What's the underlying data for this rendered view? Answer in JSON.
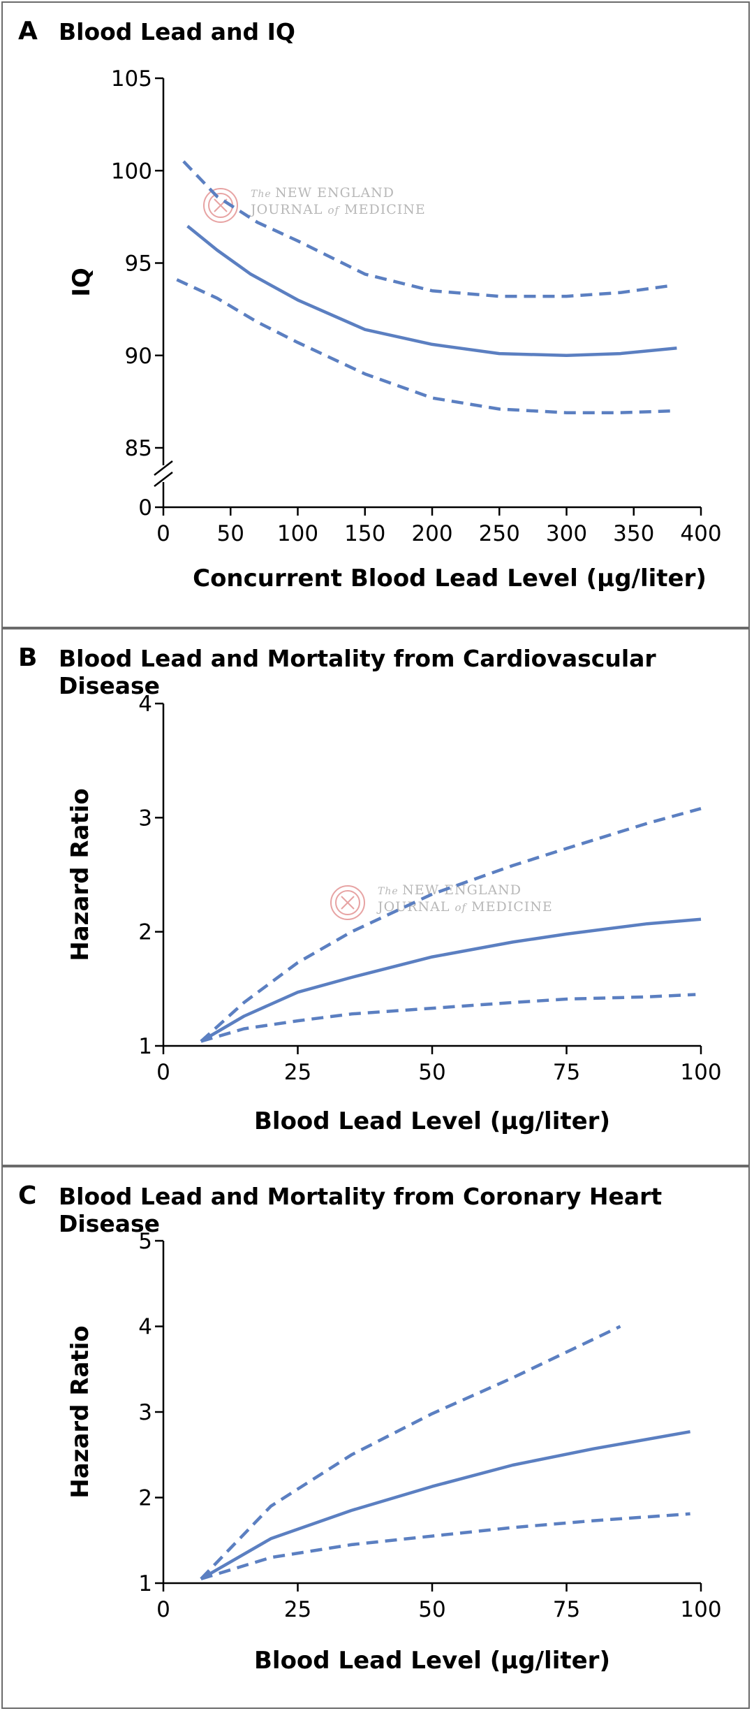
{
  "watermark": {
    "line1_prefix": "The",
    "line1": "NEW ENGLAND",
    "line2_a": "JOURNAL",
    "line2_of": "of",
    "line2_b": "MEDICINE"
  },
  "chart_data": [
    {
      "letter": "A",
      "title": "Blood Lead and IQ",
      "type": "line",
      "xlabel": "Concurrent Blood Lead Level (µg/liter)",
      "ylabel": "IQ",
      "xlim": [
        0,
        400
      ],
      "ylim": [
        85,
        105
      ],
      "xticks": [
        "0",
        "50",
        "100",
        "150",
        "200",
        "250",
        "300",
        "350",
        "400"
      ],
      "yticks": [
        "105",
        "100",
        "95",
        "90",
        "85"
      ],
      "y_zero_label": "0",
      "y_axis_break": true,
      "series": [
        {
          "style": "solid",
          "x": [
            18,
            40,
            65,
            100,
            150,
            200,
            250,
            300,
            340,
            382
          ],
          "y": [
            97.0,
            95.7,
            94.4,
            93.0,
            91.4,
            90.6,
            90.1,
            90.0,
            90.1,
            90.4
          ]
        },
        {
          "style": "dashed",
          "x": [
            15,
            40,
            70,
            100,
            150,
            200,
            250,
            300,
            340,
            380
          ],
          "y": [
            100.5,
            98.6,
            97.2,
            96.2,
            94.4,
            93.5,
            93.2,
            93.2,
            93.4,
            93.8
          ]
        },
        {
          "style": "dashed",
          "x": [
            10,
            40,
            70,
            100,
            150,
            200,
            250,
            300,
            340,
            380
          ],
          "y": [
            94.1,
            93.1,
            91.8,
            90.7,
            89.0,
            87.7,
            87.1,
            86.9,
            86.9,
            87.0
          ]
        }
      ]
    },
    {
      "letter": "B",
      "title": "Blood Lead and Mortality from Cardiovascular Disease",
      "type": "line",
      "xlabel": "Blood Lead Level (µg/liter)",
      "ylabel": "Hazard Ratio",
      "xlim": [
        0,
        100
      ],
      "ylim": [
        1,
        4
      ],
      "xticks": [
        "0",
        "25",
        "50",
        "75",
        "100"
      ],
      "yticks": [
        "4",
        "3",
        "2",
        "1"
      ],
      "series": [
        {
          "style": "solid",
          "x": [
            7,
            15,
            25,
            35,
            50,
            65,
            75,
            90,
            100
          ],
          "y": [
            1.04,
            1.26,
            1.47,
            1.6,
            1.78,
            1.91,
            1.98,
            2.07,
            2.11
          ]
        },
        {
          "style": "dashed",
          "x": [
            7,
            15,
            25,
            35,
            50,
            65,
            75,
            90,
            100
          ],
          "y": [
            1.04,
            1.38,
            1.73,
            2.0,
            2.33,
            2.58,
            2.73,
            2.95,
            3.08
          ]
        },
        {
          "style": "dashed",
          "x": [
            7,
            15,
            25,
            35,
            50,
            65,
            75,
            90,
            99
          ],
          "y": [
            1.04,
            1.15,
            1.22,
            1.28,
            1.33,
            1.38,
            1.41,
            1.43,
            1.45
          ]
        }
      ]
    },
    {
      "letter": "C",
      "title": "Blood Lead and Mortality from Coronary Heart Disease",
      "type": "line",
      "xlabel": "Blood Lead Level (µg/liter)",
      "ylabel": "Hazard Ratio",
      "xlim": [
        0,
        100
      ],
      "ylim": [
        1,
        5
      ],
      "xticks": [
        "0",
        "25",
        "50",
        "75",
        "100"
      ],
      "yticks": [
        "5",
        "4",
        "3",
        "2",
        "1"
      ],
      "series": [
        {
          "style": "solid",
          "x": [
            7,
            20,
            35,
            50,
            65,
            80,
            98
          ],
          "y": [
            1.05,
            1.52,
            1.85,
            2.13,
            2.38,
            2.57,
            2.77
          ]
        },
        {
          "style": "dashed",
          "x": [
            7,
            20,
            35,
            50,
            65,
            85
          ],
          "y": [
            1.05,
            1.9,
            2.5,
            2.98,
            3.4,
            4.0
          ]
        },
        {
          "style": "dashed",
          "x": [
            7,
            20,
            35,
            50,
            65,
            80,
            98
          ],
          "y": [
            1.05,
            1.3,
            1.45,
            1.55,
            1.65,
            1.73,
            1.81
          ]
        }
      ]
    }
  ]
}
